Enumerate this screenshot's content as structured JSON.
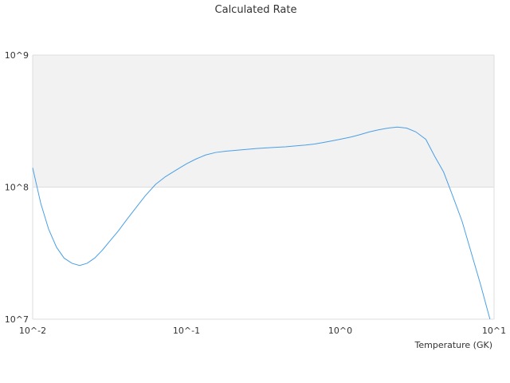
{
  "chart_data": {
    "type": "line",
    "title": "Calculated Rate",
    "xlabel": "Temperature (GK)",
    "ylabel": "",
    "x_scale": "log",
    "y_scale": "log",
    "xlim": [
      0.01,
      10
    ],
    "ylim": [
      10000000,
      1000000000
    ],
    "x_ticks": [
      "10^-2",
      "10^-1",
      "10^0",
      "10^1"
    ],
    "y_ticks": [
      "10^7",
      "10^8",
      "10^9"
    ],
    "shaded_band": [
      100000000,
      1000000000
    ],
    "colors": {
      "line": "#4a9fe6",
      "band": "#f2f2f2",
      "grid": "#dddddd"
    },
    "series": [
      {
        "x": [
          0.01,
          0.0113,
          0.0127,
          0.0143,
          0.016,
          0.018,
          0.0202,
          0.0226,
          0.0253,
          0.0285,
          0.032,
          0.036,
          0.041,
          0.047,
          0.054,
          0.063,
          0.073,
          0.086,
          0.1,
          0.115,
          0.133,
          0.155,
          0.18,
          0.21,
          0.245,
          0.285,
          0.33,
          0.38,
          0.44,
          0.51,
          0.59,
          0.68,
          0.78,
          0.9,
          1.03,
          1.18,
          1.35,
          1.55,
          1.78,
          2.05,
          2.35,
          2.7,
          3.1,
          3.6,
          4.1,
          4.7,
          5.4,
          6.2,
          7.1,
          8.2,
          9.4
        ],
        "values": [
          140000000,
          75000000,
          48000000,
          35000000,
          29000000,
          26500000,
          25500000,
          26500000,
          29000000,
          33500000,
          39500000,
          46500000,
          57000000,
          70000000,
          86000000,
          105000000,
          120000000,
          135000000,
          150000000,
          163000000,
          175000000,
          183000000,
          187000000,
          190000000,
          193000000,
          196000000,
          198000000,
          200000000,
          202000000,
          205000000,
          208000000,
          212000000,
          218000000,
          225000000,
          232000000,
          240000000,
          250000000,
          262000000,
          272000000,
          280000000,
          285000000,
          280000000,
          262000000,
          230000000,
          172000000,
          130000000,
          85000000,
          55000000,
          32000000,
          18000000,
          10000000
        ]
      }
    ]
  }
}
